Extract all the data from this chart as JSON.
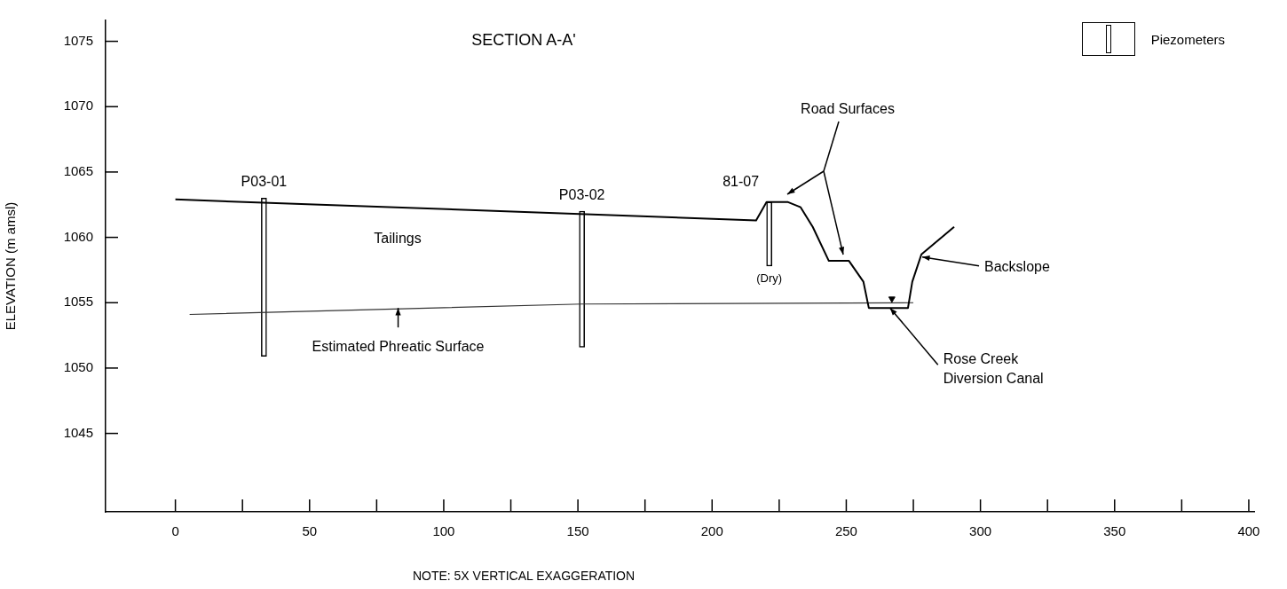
{
  "chart_data": {
    "type": "line",
    "title": "SECTION A-A'",
    "ylabel": "ELEVATION (m amsl)",
    "xlim": [
      -26,
      402
    ],
    "xticks": [
      0,
      {
        "value": 25,
        "label": null
      },
      50,
      {
        "value": 75,
        "label": null
      },
      100,
      {
        "value": 125,
        "label": null
      },
      150,
      {
        "value": 175,
        "label": null
      },
      200,
      {
        "value": 225,
        "label": null
      },
      250,
      {
        "value": 275,
        "label": null
      },
      300,
      {
        "value": 325,
        "label": null
      },
      350,
      {
        "value": 375,
        "label": null
      },
      400
    ],
    "ylim": [
      1039,
      1076.6
    ],
    "yticks": [
      1045,
      1050,
      1055,
      1060,
      1065,
      1070,
      1075
    ],
    "legend": "top right",
    "line_style": "solid",
    "marker": "none",
    "series": [
      {
        "color": "#000000",
        "x": [
          0,
          216.4,
          220.3,
          228.3,
          233,
          237.5,
          243.5,
          251,
          256.4,
          258.4,
          273,
          274.6,
          278,
          290.2
        ],
        "values": [
          1062.9,
          1061.3,
          1062.7,
          1062.7,
          1062.3,
          1060.8,
          1058.2,
          1058.2,
          1056.6,
          1054.6,
          1054.6,
          1056.6,
          1058.7,
          1060.8
        ]
      },
      {
        "color": "#333333",
        "x": [
          5.3,
          151.5,
          275
        ],
        "values": [
          1054.1,
          1054.9,
          1055.0
        ]
      },
      {
        "type": "scatter",
        "color": "#000000",
        "marker": "triangle",
        "x": [
          267
        ],
        "values": [
          1055.3
        ]
      },
      {
        "type": "bar",
        "name": "Piezometers",
        "color": "#ffffff",
        "x": [
          33,
          151.5,
          221.3
        ],
        "base": [
          1050.9,
          1051.6,
          1057.8
        ],
        "values": [
          12.1,
          10.4,
          4.9
        ]
      }
    ],
    "annotations": [
      {
        "text": "P03-01",
        "x": 33,
        "y": 1063
      },
      {
        "text": "P03-02",
        "x": 151.5,
        "y": 1062
      },
      {
        "text": "81-07",
        "x": 221.3,
        "y": 1062.7
      },
      {
        "text": "(Dry)",
        "x": 221.3,
        "y": 1057.8
      },
      "Tailings",
      {
        "text": "Estimated Phreatic Surface",
        "x": 83,
        "y": 1054.6
      },
      "Road Surfaces",
      {
        "text": "Backslope",
        "x": 278.3,
        "y": 1058.5
      },
      {
        "text": "Rose Creek\nDiversion Canal",
        "x": 266.3,
        "y": 1054.6
      },
      "NOTE: 5X VERTICAL EXAGGERATION"
    ]
  }
}
